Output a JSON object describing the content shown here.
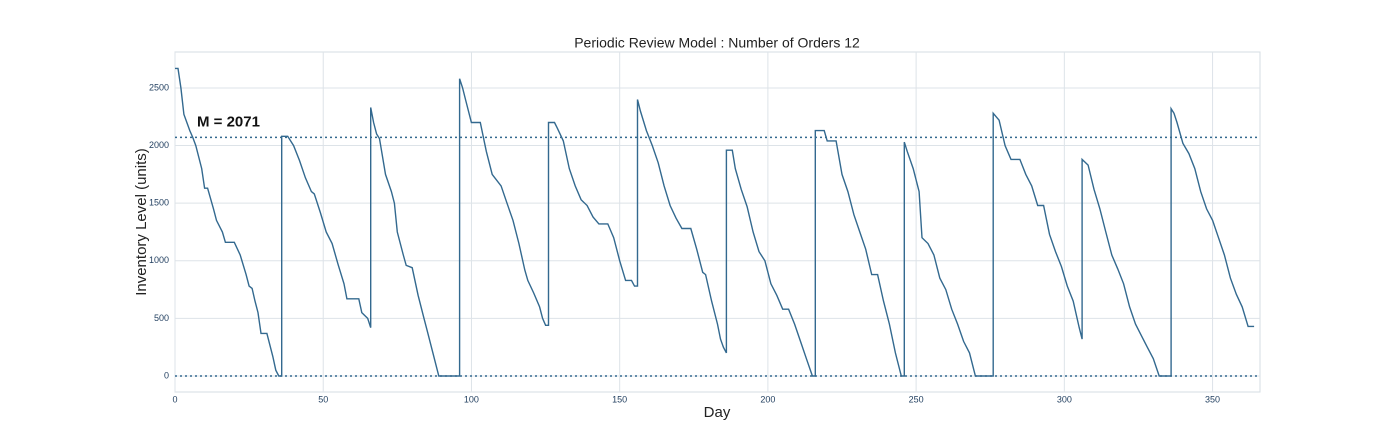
{
  "chart_data": {
    "type": "line",
    "title": "Periodic Review Model : Number of Orders 12",
    "xlabel": "Day",
    "ylabel": "Inventory Level (units)",
    "annotation": "M = 2071",
    "hlines": [
      2071,
      0
    ],
    "color": "#33698f",
    "x": [
      0,
      1,
      2,
      3,
      5,
      6,
      7,
      9,
      10,
      11,
      13,
      14,
      16,
      17,
      20,
      22,
      24,
      25,
      26,
      27,
      28,
      29,
      31,
      33,
      34,
      35,
      36,
      36,
      38,
      40,
      42,
      44,
      46,
      47,
      49,
      51,
      53,
      55,
      57,
      58,
      62,
      63,
      65,
      66,
      66,
      67,
      68,
      69,
      71,
      73,
      74,
      75,
      77,
      78,
      80,
      82,
      84,
      85,
      87,
      89,
      96,
      96,
      97,
      98,
      100,
      103,
      105,
      107,
      110,
      112,
      114,
      116,
      118,
      119,
      121,
      123,
      124,
      125,
      126,
      126,
      128,
      129,
      131,
      133,
      135,
      137,
      139,
      141,
      143,
      146,
      148,
      150,
      152,
      154,
      155,
      156,
      156,
      157,
      159,
      161,
      163,
      165,
      167,
      169,
      171,
      174,
      176,
      178,
      179,
      181,
      183,
      184,
      185,
      186,
      186,
      188,
      189,
      191,
      193,
      195,
      197,
      199,
      201,
      203,
      205,
      207,
      209,
      211,
      213,
      215,
      216,
      216,
      219,
      220,
      223,
      225,
      227,
      229,
      231,
      233,
      235,
      237,
      239,
      241,
      243,
      245,
      246,
      246,
      247,
      249,
      251,
      252,
      254,
      256,
      258,
      260,
      262,
      264,
      266,
      268,
      270,
      276,
      276,
      278,
      280,
      282,
      285,
      287,
      289,
      291,
      293,
      295,
      297,
      299,
      301,
      303,
      305,
      306,
      306,
      308,
      310,
      312,
      314,
      316,
      318,
      320,
      322,
      324,
      326,
      328,
      330,
      332,
      336,
      336,
      337,
      338,
      340,
      342,
      344,
      346,
      348,
      350,
      352,
      354,
      356,
      358,
      360,
      362,
      364
    ],
    "values": [
      2670,
      2670,
      2500,
      2270,
      2130,
      2070,
      2000,
      1800,
      1630,
      1630,
      1450,
      1350,
      1250,
      1160,
      1160,
      1050,
      880,
      780,
      760,
      650,
      550,
      370,
      370,
      170,
      50,
      0,
      0,
      2080,
      2080,
      2000,
      1870,
      1720,
      1600,
      1580,
      1420,
      1250,
      1150,
      970,
      800,
      670,
      670,
      550,
      500,
      420,
      2330,
      2200,
      2100,
      2060,
      1750,
      1600,
      1500,
      1250,
      1050,
      960,
      940,
      700,
      500,
      400,
      200,
      0,
      0,
      2580,
      2500,
      2400,
      2200,
      2200,
      1950,
      1750,
      1650,
      1500,
      1350,
      1150,
      920,
      830,
      720,
      600,
      500,
      440,
      440,
      2200,
      2200,
      2150,
      2040,
      1800,
      1650,
      1530,
      1480,
      1380,
      1320,
      1320,
      1200,
      1000,
      830,
      830,
      780,
      780,
      2400,
      2300,
      2130,
      2000,
      1850,
      1650,
      1480,
      1370,
      1280,
      1280,
      1100,
      900,
      880,
      650,
      450,
      320,
      250,
      200,
      1960,
      1960,
      1800,
      1620,
      1470,
      1250,
      1080,
      1000,
      800,
      700,
      580,
      580,
      450,
      300,
      150,
      0,
      0,
      2130,
      2130,
      2040,
      2040,
      1750,
      1600,
      1400,
      1250,
      1100,
      880,
      880,
      650,
      450,
      200,
      0,
      0,
      2030,
      1950,
      1800,
      1600,
      1200,
      1150,
      1050,
      850,
      750,
      580,
      450,
      300,
      200,
      0,
      0,
      2280,
      2220,
      2000,
      1880,
      1880,
      1750,
      1650,
      1480,
      1480,
      1230,
      1080,
      950,
      780,
      650,
      420,
      320,
      1880,
      1830,
      1620,
      1450,
      1250,
      1050,
      930,
      800,
      600,
      450,
      350,
      250,
      150,
      0,
      0,
      2320,
      2280,
      2200,
      2020,
      1930,
      1800,
      1600,
      1450,
      1350,
      1200,
      1050,
      850,
      710,
      600,
      430,
      430
    ],
    "xlim": [
      0,
      366
    ],
    "ylim": [
      -139,
      2812
    ],
    "xticks": [
      0,
      50,
      100,
      150,
      200,
      250,
      300,
      350
    ],
    "yticks": [
      0,
      500,
      1000,
      1500,
      2000,
      2500
    ],
    "grid": true
  }
}
